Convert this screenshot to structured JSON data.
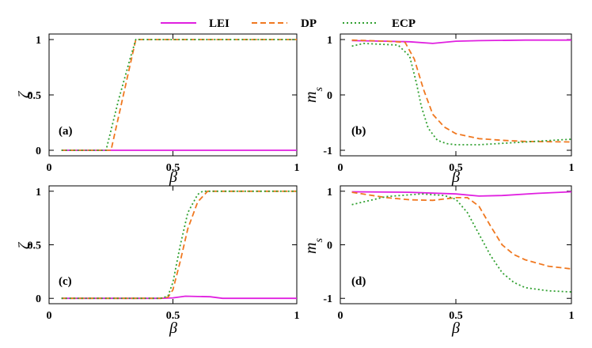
{
  "legend": [
    {
      "name": "LEI",
      "color": "#e020e0",
      "dash": "solid"
    },
    {
      "name": "DP",
      "color": "#f07820",
      "dash": "dashed"
    },
    {
      "name": "ECP",
      "color": "#30a030",
      "dash": "dotted"
    }
  ],
  "chart_data": [
    {
      "type": "line",
      "panel": "(a)",
      "position": "top-left",
      "xlabel": "β",
      "ylabel": "ζ",
      "xlim": [
        0,
        1
      ],
      "ylim": [
        -0.05,
        1.05
      ],
      "xticks": [
        0,
        0.5,
        1
      ],
      "xtick_labels": [
        "0",
        "0.5",
        "1"
      ],
      "yticks": [
        0,
        0.5,
        1
      ],
      "ytick_labels": [
        "0",
        "0.5",
        "1"
      ],
      "series": [
        {
          "name": "LEI",
          "x": [
            0.05,
            0.25,
            0.5,
            1.0
          ],
          "y": [
            0,
            0,
            0,
            0
          ]
        },
        {
          "name": "DP",
          "x": [
            0.05,
            0.25,
            0.35,
            0.5,
            1.0
          ],
          "y": [
            0,
            0,
            1,
            1,
            1
          ]
        },
        {
          "name": "ECP",
          "x": [
            0.05,
            0.23,
            0.28,
            0.33,
            0.35,
            0.5,
            1.0
          ],
          "y": [
            0,
            0,
            0.45,
            0.85,
            1,
            1,
            1
          ]
        }
      ]
    },
    {
      "type": "line",
      "panel": "(b)",
      "position": "top-right",
      "xlabel": "β",
      "ylabel": "m_s",
      "xlim": [
        0,
        1
      ],
      "ylim": [
        -1.1,
        1.1
      ],
      "xticks": [
        0,
        0.5,
        1
      ],
      "xtick_labels": [
        "0",
        "0.5",
        "1"
      ],
      "yticks": [
        -1,
        0,
        1
      ],
      "ytick_labels": [
        "-1",
        "0",
        "1"
      ],
      "series": [
        {
          "name": "LEI",
          "x": [
            0.05,
            0.2,
            0.3,
            0.4,
            0.5,
            0.6,
            0.8,
            1.0
          ],
          "y": [
            0.98,
            0.97,
            0.96,
            0.93,
            0.97,
            0.98,
            0.99,
            0.99
          ]
        },
        {
          "name": "DP",
          "x": [
            0.05,
            0.2,
            0.28,
            0.32,
            0.36,
            0.4,
            0.45,
            0.5,
            0.6,
            0.7,
            0.8,
            1.0
          ],
          "y": [
            0.99,
            0.97,
            0.95,
            0.65,
            0.1,
            -0.35,
            -0.58,
            -0.7,
            -0.79,
            -0.82,
            -0.84,
            -0.85
          ]
        },
        {
          "name": "ECP",
          "x": [
            0.05,
            0.1,
            0.25,
            0.3,
            0.33,
            0.35,
            0.38,
            0.42,
            0.46,
            0.5,
            0.6,
            0.8,
            1.0
          ],
          "y": [
            0.88,
            0.93,
            0.9,
            0.7,
            0.2,
            -0.2,
            -0.6,
            -0.82,
            -0.88,
            -0.9,
            -0.9,
            -0.85,
            -0.8
          ]
        }
      ]
    },
    {
      "type": "line",
      "panel": "(c)",
      "position": "bottom-left",
      "xlabel": "β",
      "ylabel": "ζ",
      "xlim": [
        0,
        1
      ],
      "ylim": [
        -0.05,
        1.05
      ],
      "xticks": [
        0,
        0.5,
        1
      ],
      "xtick_labels": [
        "0",
        "0.5",
        "1"
      ],
      "yticks": [
        0,
        0.5,
        1
      ],
      "ytick_labels": [
        "0",
        "0.5",
        "1"
      ],
      "series": [
        {
          "name": "LEI",
          "x": [
            0.05,
            0.3,
            0.45,
            0.5,
            0.55,
            0.65,
            0.7,
            0.9,
            1.0
          ],
          "y": [
            0,
            0,
            0,
            0.005,
            0.02,
            0.015,
            0,
            0,
            0
          ]
        },
        {
          "name": "DP",
          "x": [
            0.05,
            0.45,
            0.48,
            0.5,
            0.53,
            0.56,
            0.6,
            0.64,
            0.7,
            1.0
          ],
          "y": [
            0,
            0,
            0.01,
            0.08,
            0.35,
            0.65,
            0.9,
            1,
            1,
            1
          ]
        },
        {
          "name": "ECP",
          "x": [
            0.05,
            0.45,
            0.48,
            0.5,
            0.53,
            0.56,
            0.6,
            0.62,
            0.7,
            1.0
          ],
          "y": [
            0,
            0,
            0.02,
            0.15,
            0.5,
            0.8,
            0.97,
            1,
            1,
            1
          ]
        }
      ]
    },
    {
      "type": "line",
      "panel": "(d)",
      "position": "bottom-right",
      "xlabel": "β",
      "ylabel": "m_s",
      "xlim": [
        0,
        1
      ],
      "ylim": [
        -1.1,
        1.1
      ],
      "xticks": [
        0,
        0.5,
        1
      ],
      "xtick_labels": [
        "0",
        "0.5",
        "1"
      ],
      "yticks": [
        -1,
        0,
        1
      ],
      "ytick_labels": [
        "-1",
        "0",
        "1"
      ],
      "series": [
        {
          "name": "LEI",
          "x": [
            0.05,
            0.3,
            0.5,
            0.6,
            0.7,
            0.85,
            1.0
          ],
          "y": [
            0.99,
            0.98,
            0.95,
            0.91,
            0.92,
            0.96,
            0.99
          ]
        },
        {
          "name": "DP",
          "x": [
            0.05,
            0.2,
            0.3,
            0.4,
            0.5,
            0.55,
            0.6,
            0.65,
            0.7,
            0.75,
            0.8,
            0.9,
            1.0
          ],
          "y": [
            0.98,
            0.88,
            0.84,
            0.83,
            0.88,
            0.88,
            0.72,
            0.35,
            0.0,
            -0.18,
            -0.28,
            -0.4,
            -0.45
          ]
        },
        {
          "name": "ECP",
          "x": [
            0.05,
            0.2,
            0.35,
            0.45,
            0.5,
            0.55,
            0.6,
            0.65,
            0.7,
            0.75,
            0.8,
            0.9,
            1.0
          ],
          "y": [
            0.75,
            0.9,
            0.95,
            0.92,
            0.85,
            0.6,
            0.2,
            -0.2,
            -0.52,
            -0.7,
            -0.8,
            -0.86,
            -0.88
          ]
        }
      ]
    }
  ]
}
